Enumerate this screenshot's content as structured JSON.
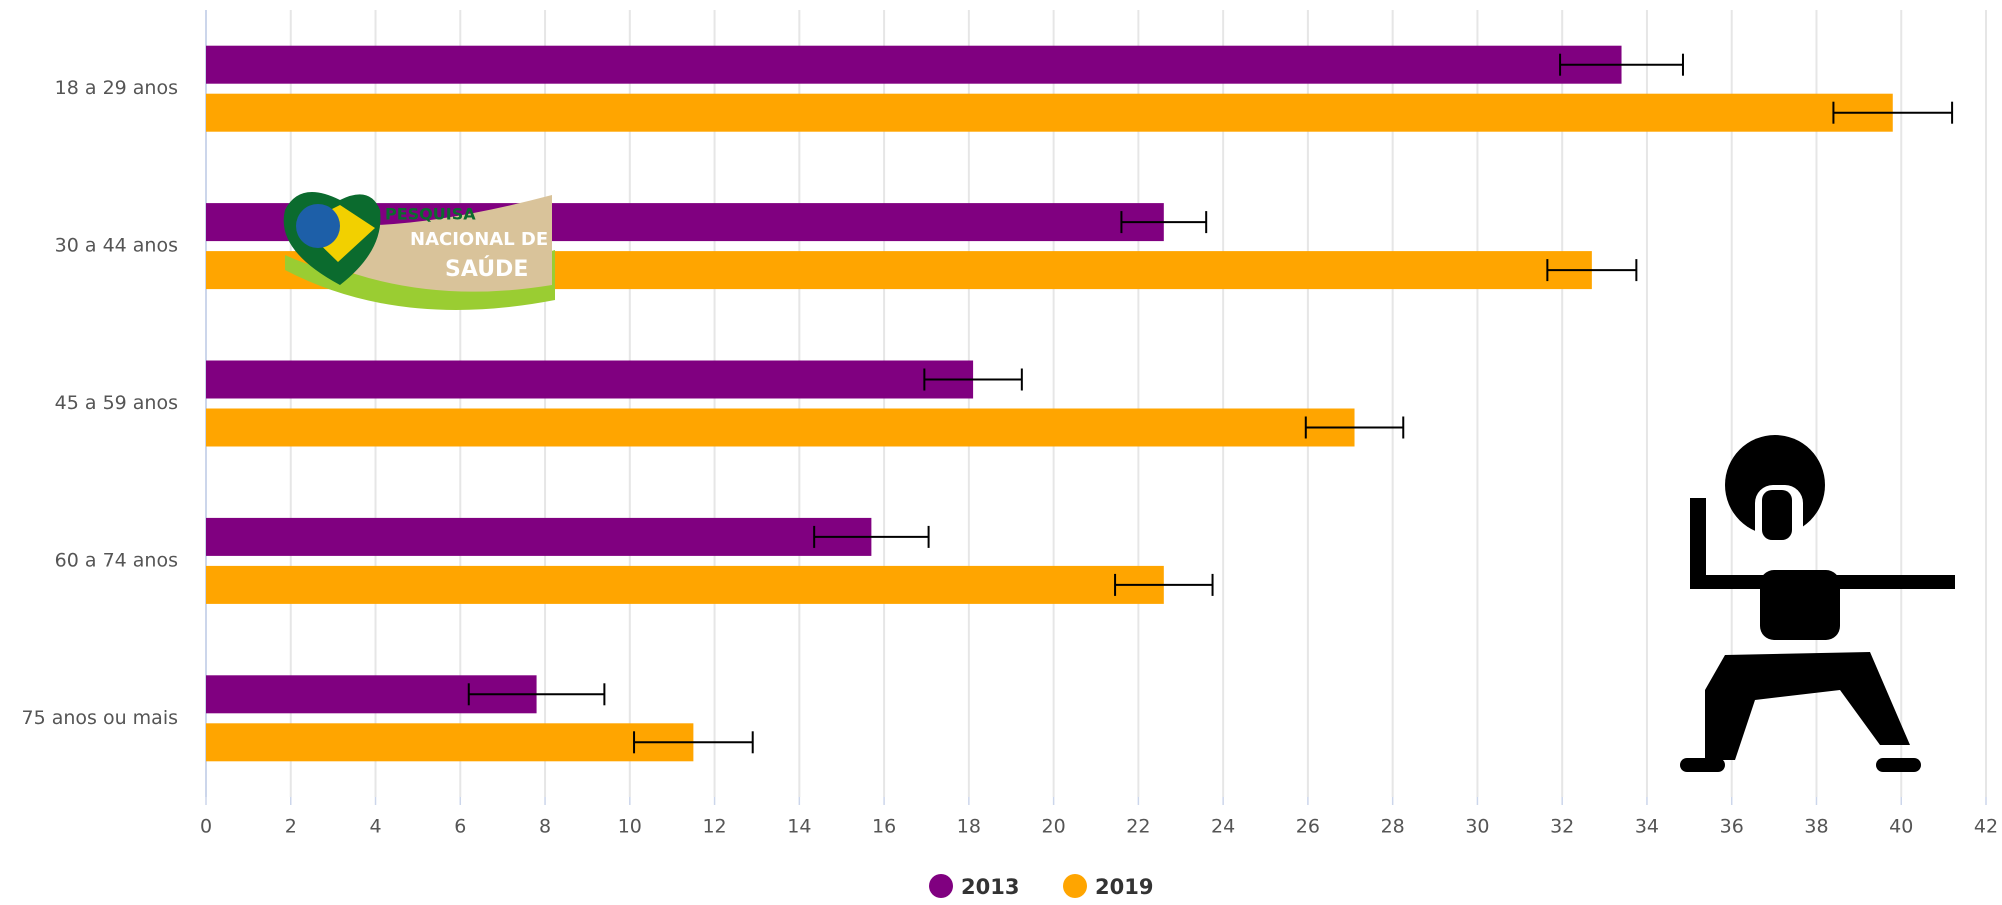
{
  "chart_data": {
    "type": "bar",
    "orientation": "horizontal",
    "categories": [
      "18 a 29 anos",
      "30 a 44 anos",
      "45 a 59 anos",
      "60 a 74 anos",
      "75 anos ou mais"
    ],
    "series": [
      {
        "name": "2013",
        "color": "#800080",
        "values": [
          33.4,
          22.6,
          18.1,
          15.7,
          7.8
        ],
        "errors": [
          1.45,
          1.0,
          1.15,
          1.35,
          1.6
        ]
      },
      {
        "name": "2019",
        "color": "#ffa500",
        "values": [
          39.8,
          32.7,
          27.1,
          22.6,
          11.5
        ],
        "errors": [
          1.4,
          1.05,
          1.15,
          1.15,
          1.4
        ]
      }
    ],
    "xlim": [
      0,
      42
    ],
    "xticks": [
      0,
      2,
      4,
      6,
      8,
      10,
      12,
      14,
      16,
      18,
      20,
      22,
      24,
      26,
      28,
      30,
      32,
      34,
      36,
      38,
      40,
      42
    ],
    "grid": true,
    "legend": "bottom"
  },
  "logo": {
    "line1": "PESQUISA",
    "line2": "NACIONAL DE",
    "line3": "SAÚDE"
  }
}
